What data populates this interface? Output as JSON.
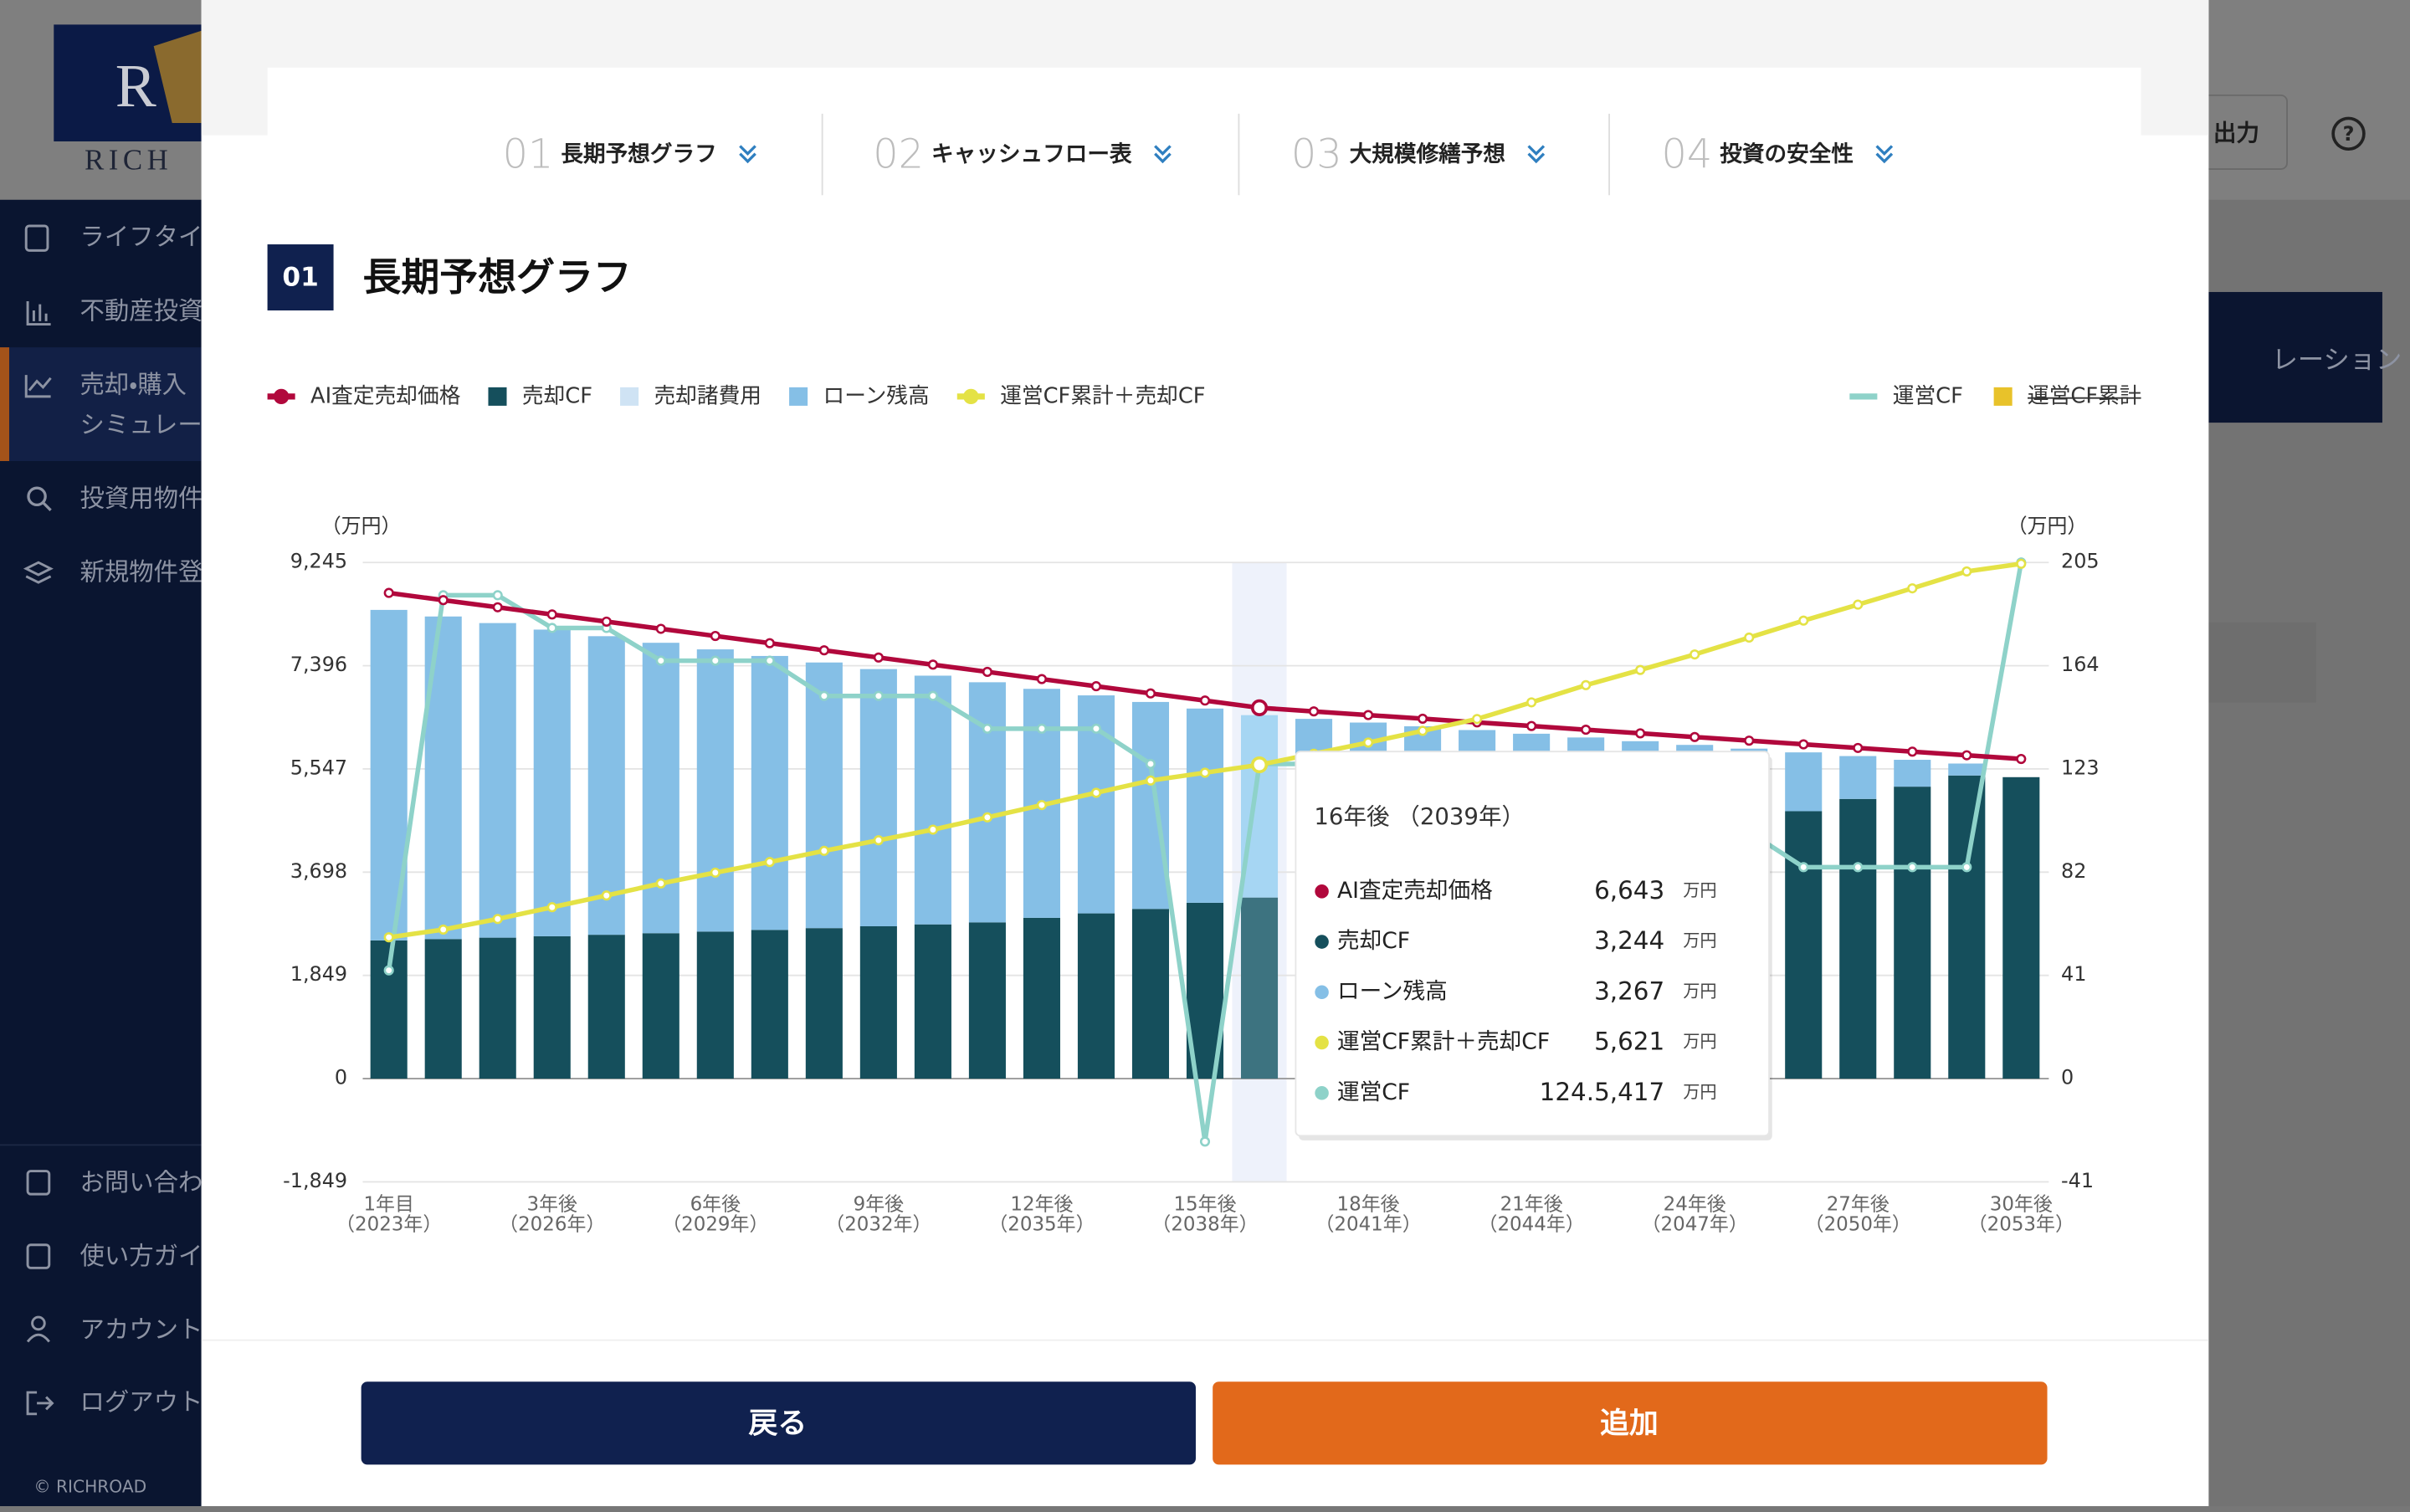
{
  "sidebar": {
    "logo": "RICH",
    "items": [
      "ライフタイ",
      "不動産投資",
      "売却・購入",
      "シミュレー",
      "投資用物件",
      "新規物件登"
    ],
    "bottom_items": [
      "お問い合わ",
      "使い方ガイ",
      "アカウント",
      "ログアウト"
    ],
    "copyright": "© RICHROAD"
  },
  "background": {
    "export_button": "出力",
    "help": "?",
    "side_label": "レーション"
  },
  "tabs": [
    {
      "number": "01",
      "label": "長期予想グラフ"
    },
    {
      "number": "02",
      "label": "キャッシュフロー表"
    },
    {
      "number": "03",
      "label": "大規模修繕予想"
    },
    {
      "number": "04",
      "label": "投資の安全性"
    }
  ],
  "section": {
    "number": "01",
    "title": "長期予想グラフ"
  },
  "chart_data": {
    "type": "bar",
    "y_unit": "（万円）",
    "y2_unit": "（万円）",
    "categories": [
      "1年目",
      null,
      null,
      "3年後",
      null,
      null,
      "6年後",
      null,
      null,
      "9年後",
      null,
      null,
      "12年後",
      null,
      null,
      "15年後",
      null,
      null,
      "18年後",
      null,
      null,
      "21年後",
      null,
      null,
      "24年後",
      null,
      null,
      "27年後",
      null,
      null,
      "30年後"
    ],
    "category_sublabels": [
      "（2023年）",
      null,
      null,
      "（2026年）",
      null,
      null,
      "（2029年）",
      null,
      null,
      "（2032年）",
      null,
      null,
      "（2035年）",
      null,
      null,
      "（2038年）",
      null,
      null,
      "（2041年）",
      null,
      null,
      "（2044年）",
      null,
      null,
      "（2047年）",
      null,
      null,
      "（2050年）",
      null,
      null,
      "（2053年）"
    ],
    "ylim": [
      -1849,
      9245
    ],
    "yticks": [
      {
        "value": -1849,
        "label": "-1,849"
      },
      0,
      {
        "value": 1849,
        "label": "1,849"
      },
      {
        "value": 3698,
        "label": "3,698"
      },
      {
        "value": 5547,
        "label": "5,547"
      },
      {
        "value": 7396,
        "label": "7,396"
      },
      {
        "value": 9245,
        "label": "9,245"
      }
    ],
    "y2lim": [
      -41,
      205
    ],
    "y2ticks": [
      -41,
      0,
      41,
      82,
      123,
      164,
      205
    ],
    "grid": true,
    "hover_index": 16,
    "series": [
      {
        "name": "AI査定売却価格",
        "type": "line",
        "color": "#b1083c",
        "legend_symbol": "line-dot",
        "values": [
          8700,
          8571,
          8443,
          8314,
          8186,
          8057,
          7929,
          7800,
          7672,
          7543,
          7415,
          7286,
          7157,
          7029,
          6900,
          6772,
          6643,
          6578,
          6512,
          6447,
          6381,
          6316,
          6250,
          6185,
          6119,
          6054,
          5988,
          5923,
          5857,
          5792,
          5726
        ]
      },
      {
        "name": "売却CF",
        "type": "bar",
        "color": "#154f5c",
        "hover_color": "#3d7380",
        "legend_symbol": "square",
        "values": [
          2476,
          2500,
          2525,
          2550,
          2577,
          2605,
          2634,
          2664,
          2696,
          2729,
          2763,
          2799,
          2880,
          2960,
          3040,
          3150,
          3244,
          3350,
          3460,
          3580,
          3700,
          3830,
          3960,
          4100,
          4250,
          4400,
          4790,
          5010,
          5230,
          5430,
          5400
        ]
      },
      {
        "name": "売却諸費用",
        "type": "bar",
        "color": "#cfe3f4",
        "legend_symbol": "square"
      },
      {
        "name": "ローン残高",
        "type": "bar",
        "color": "#85bfe6",
        "hover_color": "#a6d6f3",
        "legend_symbol": "square",
        "values": [
          5920,
          5778,
          5635,
          5493,
          5348,
          5202,
          5055,
          4907,
          4758,
          4607,
          4455,
          4301,
          4102,
          3905,
          3707,
          3479,
          3267,
          3094,
          2918,
          2731,
          2544,
          2348,
          2151,
          1944,
          1728,
          1511,
          1054,
          768,
          481,
          214,
          0
        ]
      },
      {
        "name": "運営CF累計＋売却CF",
        "type": "line",
        "color": "#e4e245",
        "legend_symbol": "line-dot",
        "values": [
          2531,
          2670,
          2860,
          3070,
          3280,
          3496,
          3690,
          3880,
          4080,
          4270,
          4460,
          4680,
          4900,
          5120,
          5340,
          5480,
          5621,
          5820,
          6020,
          6230,
          6442,
          6740,
          7048,
          7320,
          7598,
          7900,
          8204,
          8490,
          8782,
          9085,
          9222
        ]
      },
      {
        "name": "運営CF",
        "type": "line",
        "axis": "y2",
        "color": "#8ed2c9",
        "legend_symbol": "line",
        "values": [
          43,
          192,
          192,
          179,
          179,
          166,
          166,
          166,
          152,
          152,
          152,
          139,
          139,
          139,
          125,
          -25,
          125,
          125,
          112,
          112,
          112,
          98,
          98,
          98,
          98,
          98,
          84,
          84,
          84,
          84,
          205
        ]
      },
      {
        "name": "運営CF累計",
        "type": "bar",
        "axis": "y2",
        "color": "#e8c22a",
        "legend_symbol": "square",
        "hidden": true
      }
    ],
    "tooltip": {
      "title": "16年後 （2039年）",
      "rows": [
        {
          "name": "AI査定売却価格",
          "value": "6,643",
          "unit": "万円"
        },
        {
          "name": "売却CF",
          "value": "3,244",
          "unit": "万円"
        },
        {
          "name": "ローン残高",
          "value": "3,267",
          "unit": "万円"
        },
        {
          "name": "運営CF累計＋売却CF",
          "value": "5,621",
          "unit": "万円"
        },
        {
          "name": "運営CF",
          "value": "124.5,417",
          "unit": "万円"
        }
      ]
    }
  },
  "buttons": {
    "back": "戻る",
    "add": "追加"
  }
}
